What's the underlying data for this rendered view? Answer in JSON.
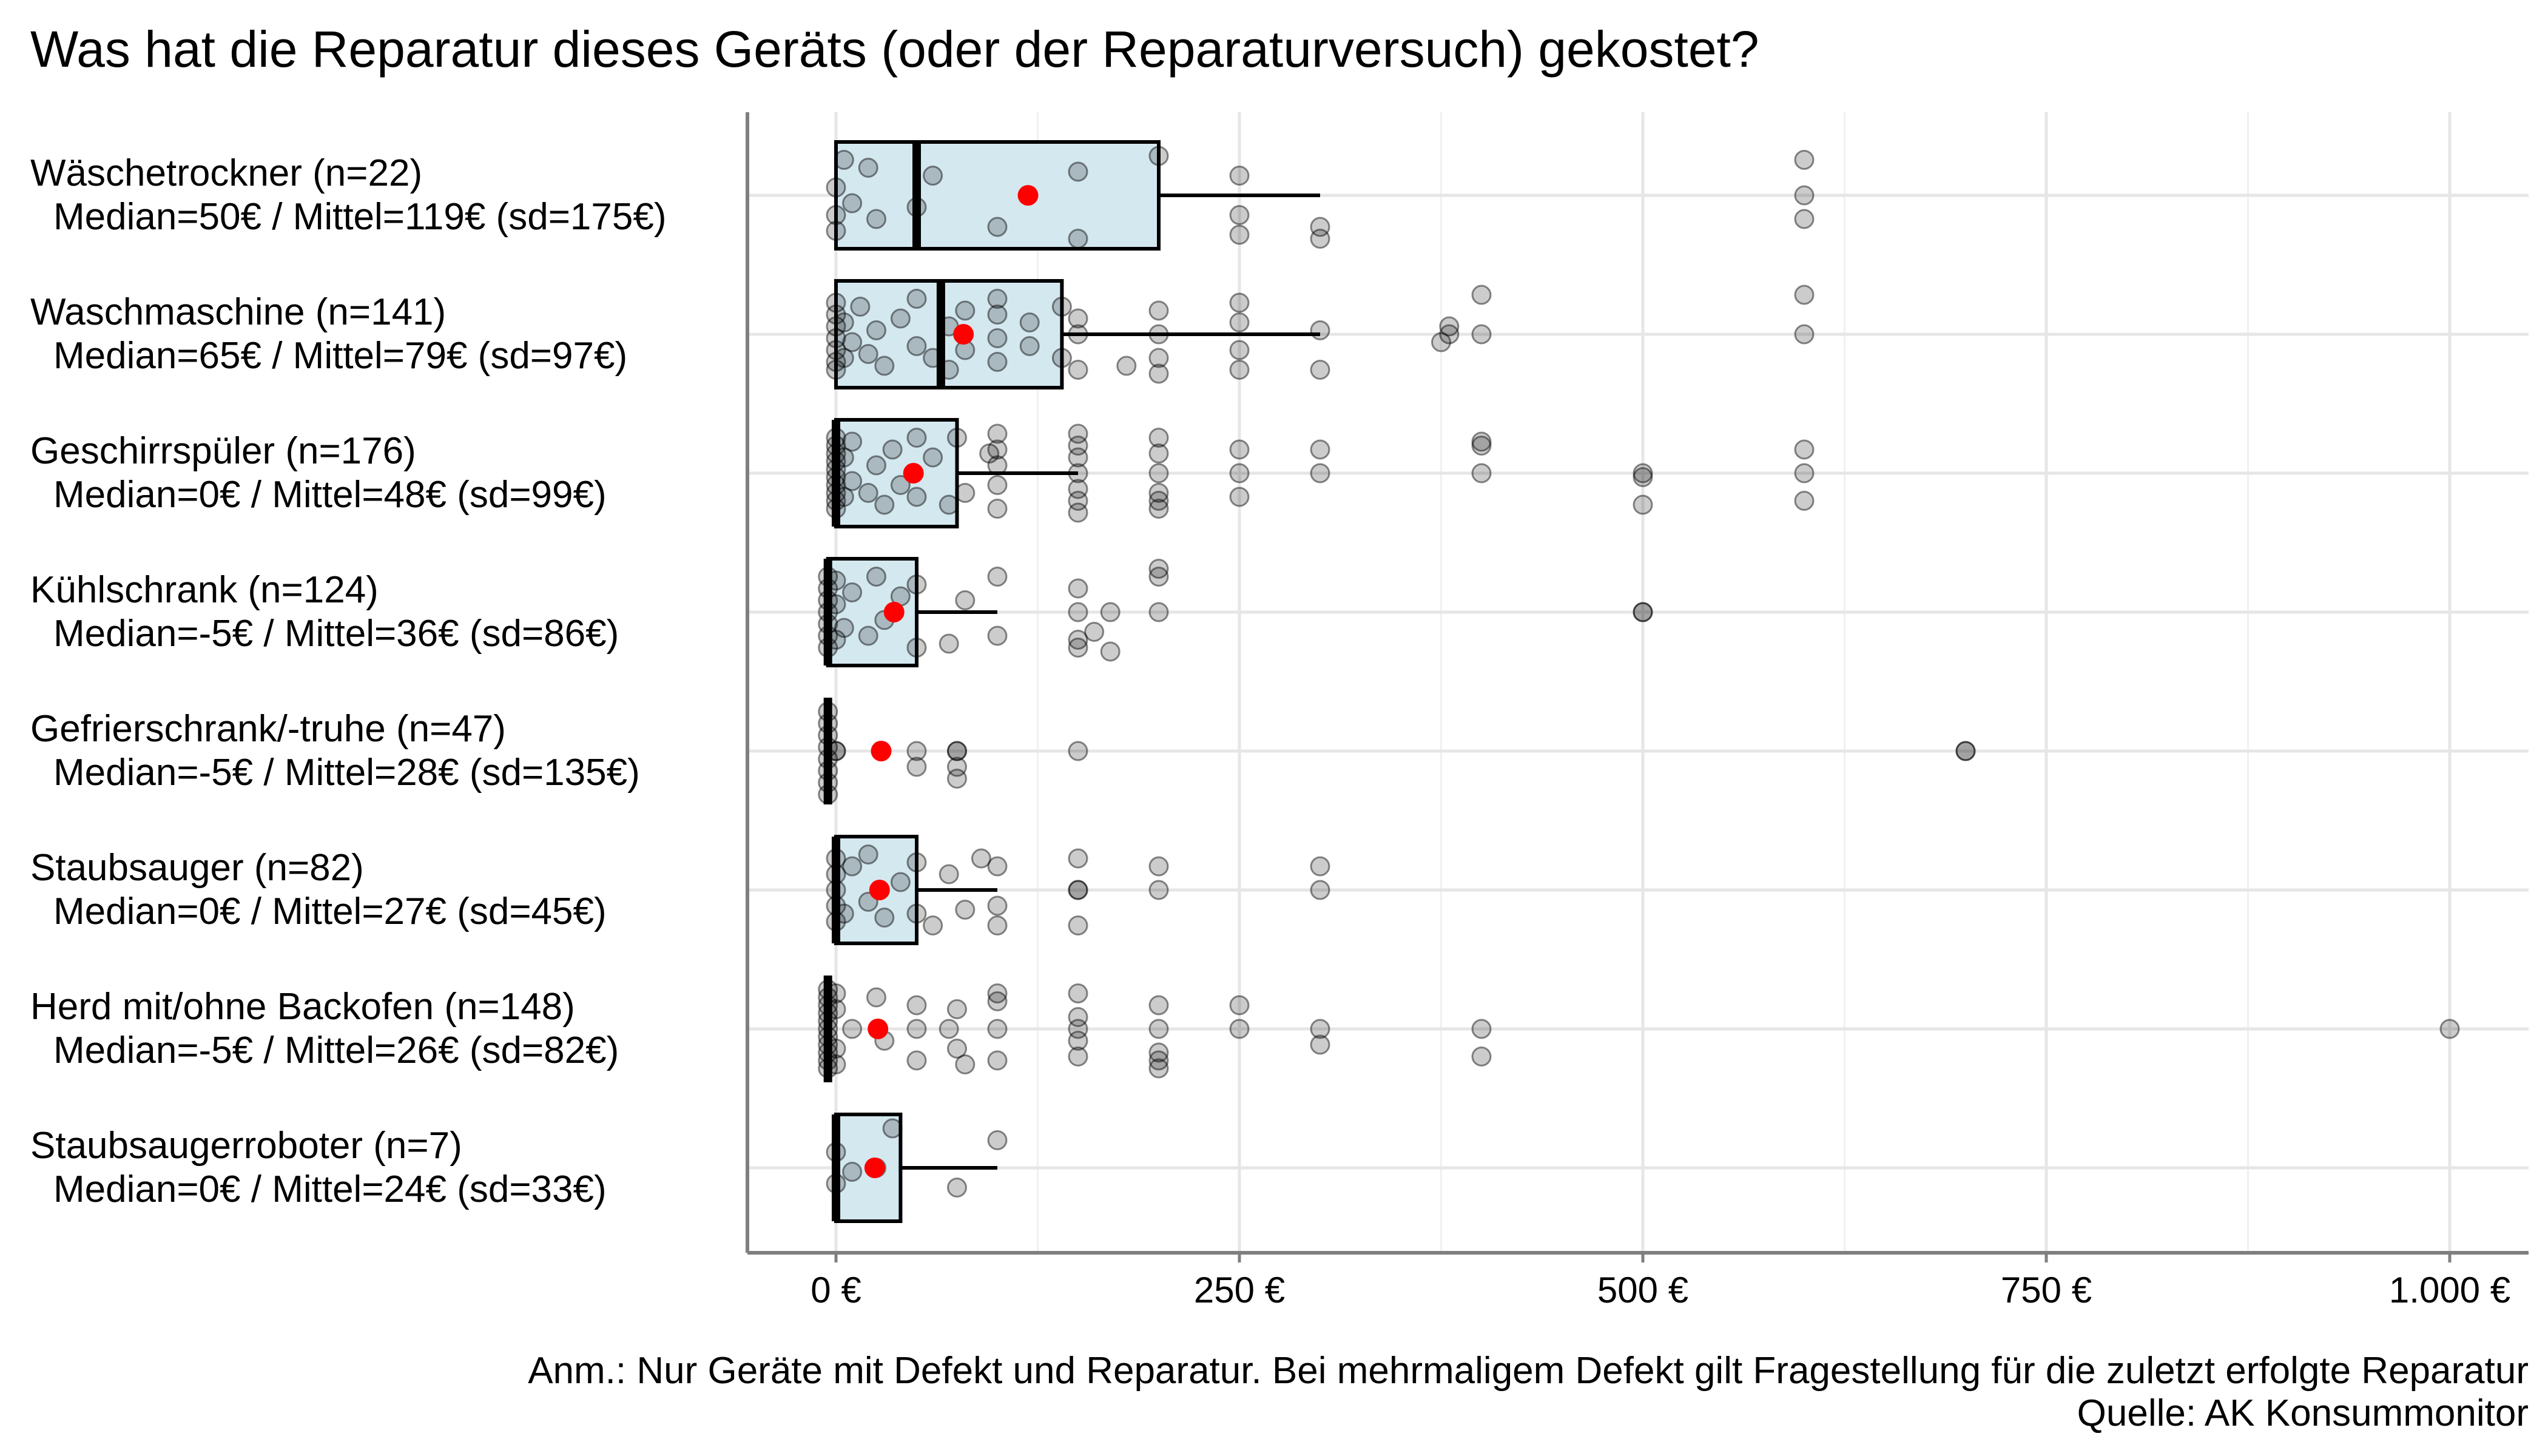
{
  "chart_data": {
    "type": "boxplot",
    "title": "Was hat die Reparatur dieses Geräts (oder der Reparaturversuch) gekostet?",
    "caption_line1": "Anm.: Nur Geräte mit Defekt und Reparatur. Bei mehrmaligem Defekt gilt Fragestellung für die zuletzt erfolgte Reparatur",
    "caption_line2": "Quelle: AK Konsummonitor",
    "xlim": [
      -25,
      1025
    ],
    "x_ticks": [
      0,
      250,
      500,
      750,
      1000
    ],
    "x_tick_labels": [
      "0 €",
      "250 €",
      "500 €",
      "750 €",
      "1.000 €"
    ],
    "grid": true,
    "colors": {
      "box_fill": "#d4e8ef",
      "mean": "#ff0000",
      "point": "#000000",
      "grid": "#e6e6e6",
      "axis": "#7f7f7f"
    },
    "categories": [
      {
        "label_line1": "Wäschetrockner (n=22)",
        "label_line2": "Median=50€ / Mittel=119€ (sd=175€)",
        "q1": 0,
        "median": 50,
        "q3": 200,
        "whisker_low": 0,
        "whisker_high": 300,
        "mean": 119,
        "points": [
          [
            0,
            0.5
          ],
          [
            0,
            -0.2
          ],
          [
            0,
            0.9
          ],
          [
            5,
            -0.9
          ],
          [
            10,
            0.2
          ],
          [
            20,
            -0.7
          ],
          [
            25,
            0.6
          ],
          [
            50,
            0.3
          ],
          [
            60,
            -0.5
          ],
          [
            100,
            0.8
          ],
          [
            150,
            1.1
          ],
          [
            150,
            -0.6
          ],
          [
            200,
            -1.0
          ],
          [
            250,
            -0.5
          ],
          [
            250,
            0.5
          ],
          [
            250,
            1.0
          ],
          [
            300,
            1.1
          ],
          [
            300,
            0.8
          ],
          [
            600,
            -0.9
          ],
          [
            600,
            0
          ],
          [
            600,
            0.6
          ]
        ]
      },
      {
        "label_line1": "Waschmaschine (n=141)",
        "label_line2": "Median=65€ / Mittel=79€ (sd=97€)",
        "q1": 0,
        "median": 65,
        "q3": 140,
        "whisker_low": 0,
        "whisker_high": 300,
        "mean": 79,
        "points": [
          [
            0,
            0.9
          ],
          [
            0,
            0.7
          ],
          [
            0,
            0.4
          ],
          [
            0,
            0.1
          ],
          [
            0,
            -0.2
          ],
          [
            0,
            -0.5
          ],
          [
            0,
            -0.8
          ],
          [
            5,
            0.6
          ],
          [
            5,
            -0.3
          ],
          [
            10,
            0.2
          ],
          [
            15,
            -0.7
          ],
          [
            20,
            0.5
          ],
          [
            25,
            -0.1
          ],
          [
            30,
            0.8
          ],
          [
            40,
            -0.4
          ],
          [
            50,
            0.3
          ],
          [
            50,
            -0.9
          ],
          [
            60,
            0.6
          ],
          [
            70,
            -0.2
          ],
          [
            70,
            0.9
          ],
          [
            80,
            -0.6
          ],
          [
            80,
            0.4
          ],
          [
            100,
            0.7
          ],
          [
            100,
            0.1
          ],
          [
            100,
            -0.5
          ],
          [
            100,
            -0.9
          ],
          [
            120,
            0.3
          ],
          [
            120,
            -0.3
          ],
          [
            140,
            0.6
          ],
          [
            140,
            -0.7
          ],
          [
            150,
            0.9
          ],
          [
            150,
            0
          ],
          [
            150,
            -0.4
          ],
          [
            180,
            0.8
          ],
          [
            200,
            1.0
          ],
          [
            200,
            0.6
          ],
          [
            200,
            0
          ],
          [
            200,
            -0.6
          ],
          [
            250,
            0.9
          ],
          [
            250,
            0.4
          ],
          [
            250,
            -0.3
          ],
          [
            250,
            -0.8
          ],
          [
            300,
            0.9
          ],
          [
            300,
            -0.1
          ],
          [
            375,
            0.2
          ],
          [
            380,
            -0.2
          ],
          [
            380,
            0
          ],
          [
            400,
            -1.0
          ],
          [
            400,
            0
          ],
          [
            600,
            0
          ],
          [
            600,
            -1.0
          ]
        ]
      },
      {
        "label_line1": "Geschirrspüler (n=176)",
        "label_line2": "Median=0€ / Mittel=48€ (sd=99€)",
        "q1": 0,
        "median": 0,
        "q3": 75,
        "whisker_low": 0,
        "whisker_high": 150,
        "mean": 48,
        "points": [
          [
            0,
            0.9
          ],
          [
            0,
            0.7
          ],
          [
            0,
            0.5
          ],
          [
            0,
            0.3
          ],
          [
            0,
            0.1
          ],
          [
            0,
            -0.1
          ],
          [
            0,
            -0.3
          ],
          [
            0,
            -0.5
          ],
          [
            0,
            -0.7
          ],
          [
            0,
            -0.9
          ],
          [
            5,
            0.6
          ],
          [
            5,
            -0.4
          ],
          [
            10,
            0.2
          ],
          [
            10,
            -0.8
          ],
          [
            20,
            0.5
          ],
          [
            25,
            -0.2
          ],
          [
            30,
            0.8
          ],
          [
            35,
            -0.6
          ],
          [
            40,
            0.3
          ],
          [
            50,
            -0.9
          ],
          [
            50,
            0.6
          ],
          [
            60,
            -0.4
          ],
          [
            70,
            0.8
          ],
          [
            75,
            -0.9
          ],
          [
            80,
            0.5
          ],
          [
            95,
            -0.5
          ],
          [
            100,
            0.9
          ],
          [
            100,
            0.3
          ],
          [
            100,
            -0.2
          ],
          [
            100,
            -0.6
          ],
          [
            100,
            -1.0
          ],
          [
            150,
            1.0
          ],
          [
            150,
            0.7
          ],
          [
            150,
            0.4
          ],
          [
            150,
            0
          ],
          [
            150,
            -0.4
          ],
          [
            150,
            -0.7
          ],
          [
            150,
            -1.0
          ],
          [
            200,
            0.9
          ],
          [
            200,
            0.7
          ],
          [
            200,
            0.5
          ],
          [
            200,
            0
          ],
          [
            200,
            -0.5
          ],
          [
            200,
            -0.9
          ],
          [
            250,
            0.6
          ],
          [
            250,
            0
          ],
          [
            250,
            -0.6
          ],
          [
            300,
            0
          ],
          [
            300,
            -0.6
          ],
          [
            400,
            0
          ],
          [
            400,
            -0.7
          ],
          [
            400,
            -0.8
          ],
          [
            500,
            0.8
          ],
          [
            500,
            0.1
          ],
          [
            500,
            0
          ],
          [
            600,
            0.7
          ],
          [
            600,
            0
          ],
          [
            600,
            -0.6
          ]
        ]
      },
      {
        "label_line1": "Kühlschrank (n=124)",
        "label_line2": "Median=-5€ / Mittel=36€ (sd=86€)",
        "q1": -5,
        "median": -5,
        "q3": 50,
        "whisker_low": -5,
        "whisker_high": 100,
        "mean": 36,
        "points": [
          [
            -5,
            0.9
          ],
          [
            -5,
            0.6
          ],
          [
            -5,
            0.3
          ],
          [
            -5,
            0
          ],
          [
            -5,
            -0.3
          ],
          [
            -5,
            -0.6
          ],
          [
            -5,
            -0.9
          ],
          [
            0,
            0.7
          ],
          [
            0,
            -0.2
          ],
          [
            0,
            -0.8
          ],
          [
            5,
            0.4
          ],
          [
            10,
            -0.5
          ],
          [
            20,
            0.6
          ],
          [
            25,
            -0.9
          ],
          [
            30,
            0.2
          ],
          [
            40,
            -0.4
          ],
          [
            50,
            0.9
          ],
          [
            50,
            -0.7
          ],
          [
            70,
            0.8
          ],
          [
            80,
            -0.3
          ],
          [
            100,
            0.6
          ],
          [
            100,
            -0.9
          ],
          [
            150,
            0.9
          ],
          [
            150,
            0.7
          ],
          [
            150,
            0
          ],
          [
            150,
            -0.6
          ],
          [
            160,
            0.5
          ],
          [
            170,
            0
          ],
          [
            170,
            1.0
          ],
          [
            200,
            0
          ],
          [
            200,
            -0.9
          ],
          [
            200,
            -1.1
          ],
          [
            500,
            0
          ],
          [
            500,
            0
          ]
        ]
      },
      {
        "label_line1": "Gefrierschrank/-truhe (n=47)",
        "label_line2": "Median=-5€ / Mittel=28€ (sd=135€)",
        "q1": -5,
        "median": -5,
        "q3": -5,
        "whisker_low": -5,
        "whisker_high": -5,
        "mean": 28,
        "points": [
          [
            -5,
            1.1
          ],
          [
            -5,
            0.8
          ],
          [
            -5,
            0.5
          ],
          [
            -5,
            0.2
          ],
          [
            -5,
            -0.1
          ],
          [
            -5,
            -0.4
          ],
          [
            -5,
            -0.7
          ],
          [
            -5,
            -1.0
          ],
          [
            0,
            0
          ],
          [
            0,
            0
          ],
          [
            50,
            0.4
          ],
          [
            50,
            0
          ],
          [
            75,
            0.7
          ],
          [
            75,
            0
          ],
          [
            75,
            0
          ],
          [
            75,
            0.4
          ],
          [
            150,
            0
          ],
          [
            700,
            0
          ],
          [
            700,
            0
          ]
        ]
      },
      {
        "label_line1": "Staubsauger (n=82)",
        "label_line2": "Median=0€ / Mittel=27€ (sd=45€)",
        "q1": 0,
        "median": 0,
        "q3": 50,
        "whisker_low": 0,
        "whisker_high": 100,
        "mean": 27,
        "points": [
          [
            0,
            0.8
          ],
          [
            0,
            0.4
          ],
          [
            0,
            0
          ],
          [
            0,
            -0.4
          ],
          [
            0,
            -0.8
          ],
          [
            5,
            0.6
          ],
          [
            10,
            -0.6
          ],
          [
            20,
            0.3
          ],
          [
            20,
            -0.9
          ],
          [
            30,
            0.7
          ],
          [
            40,
            -0.2
          ],
          [
            50,
            0.6
          ],
          [
            50,
            -0.7
          ],
          [
            60,
            0.9
          ],
          [
            70,
            -0.4
          ],
          [
            80,
            0.5
          ],
          [
            90,
            -0.8
          ],
          [
            100,
            0.9
          ],
          [
            100,
            0.4
          ],
          [
            100,
            -0.6
          ],
          [
            150,
            0.9
          ],
          [
            150,
            0
          ],
          [
            150,
            0
          ],
          [
            150,
            -0.8
          ],
          [
            200,
            0
          ],
          [
            200,
            -0.6
          ],
          [
            300,
            0
          ],
          [
            300,
            -0.6
          ]
        ]
      },
      {
        "label_line1": "Herd mit/ohne Backofen (n=148)",
        "label_line2": "Median=-5€ / Mittel=26€ (sd=82€)",
        "q1": -5,
        "median": -5,
        "q3": -5,
        "whisker_low": -5,
        "whisker_high": -5,
        "mean": 26,
        "points": [
          [
            -5,
            1.0
          ],
          [
            -5,
            0.8
          ],
          [
            -5,
            0.6
          ],
          [
            -5,
            0.4
          ],
          [
            -5,
            0.2
          ],
          [
            -5,
            0
          ],
          [
            -5,
            -0.2
          ],
          [
            -5,
            -0.4
          ],
          [
            -5,
            -0.6
          ],
          [
            -5,
            -0.8
          ],
          [
            -5,
            -1.0
          ],
          [
            0,
            0.9
          ],
          [
            0,
            0.5
          ],
          [
            0,
            -0.5
          ],
          [
            0,
            -0.9
          ],
          [
            10,
            0
          ],
          [
            25,
            -0.8
          ],
          [
            30,
            0.3
          ],
          [
            50,
            0
          ],
          [
            50,
            0.8
          ],
          [
            50,
            -0.6
          ],
          [
            70,
            0
          ],
          [
            75,
            0.5
          ],
          [
            75,
            -0.5
          ],
          [
            80,
            0.9
          ],
          [
            100,
            0
          ],
          [
            100,
            0.8
          ],
          [
            100,
            -0.7
          ],
          [
            100,
            -0.9
          ],
          [
            150,
            0
          ],
          [
            150,
            0.7
          ],
          [
            150,
            0.3
          ],
          [
            150,
            -0.3
          ],
          [
            150,
            -0.9
          ],
          [
            200,
            1.0
          ],
          [
            200,
            0.8
          ],
          [
            200,
            0.6
          ],
          [
            200,
            0
          ],
          [
            200,
            -0.6
          ],
          [
            250,
            0
          ],
          [
            250,
            -0.6
          ],
          [
            300,
            0.4
          ],
          [
            300,
            0
          ],
          [
            400,
            0.7
          ],
          [
            400,
            0
          ],
          [
            1000,
            0
          ]
        ]
      },
      {
        "label_line1": "Staubsaugerroboter (n=7)",
        "label_line2": "Median=0€ / Mittel=24€ (sd=33€)",
        "q1": 0,
        "median": 0,
        "q3": 40,
        "whisker_low": 0,
        "whisker_high": 100,
        "mean": 24,
        "points": [
          [
            0,
            0.4
          ],
          [
            0,
            -0.4
          ],
          [
            10,
            0.1
          ],
          [
            25,
            0
          ],
          [
            35,
            -1.0
          ],
          [
            75,
            0.5
          ],
          [
            100,
            -0.7
          ]
        ]
      }
    ]
  }
}
